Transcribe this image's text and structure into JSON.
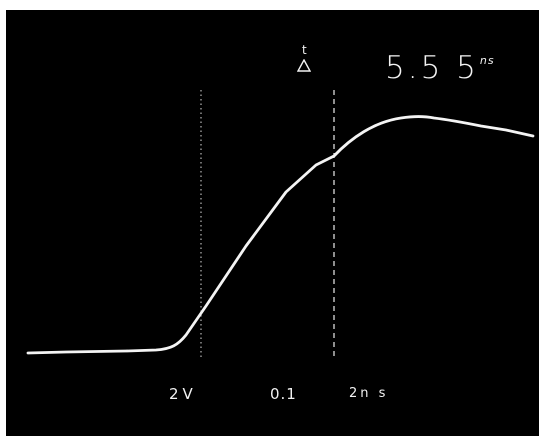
{
  "display": {
    "background_color": "#000000",
    "trace_color": "#f4f4f4",
    "text_color": "#f2f2f2"
  },
  "cursor_readout": {
    "indicator_letter": "t",
    "indicator_icon": "delta-triangle-icon",
    "time_delta_value": "5.5 5",
    "time_delta_unit": "ns"
  },
  "scale_labels": {
    "vertical_scale": "2V",
    "cursor_value": "0.1",
    "timebase": "2n s"
  }
}
